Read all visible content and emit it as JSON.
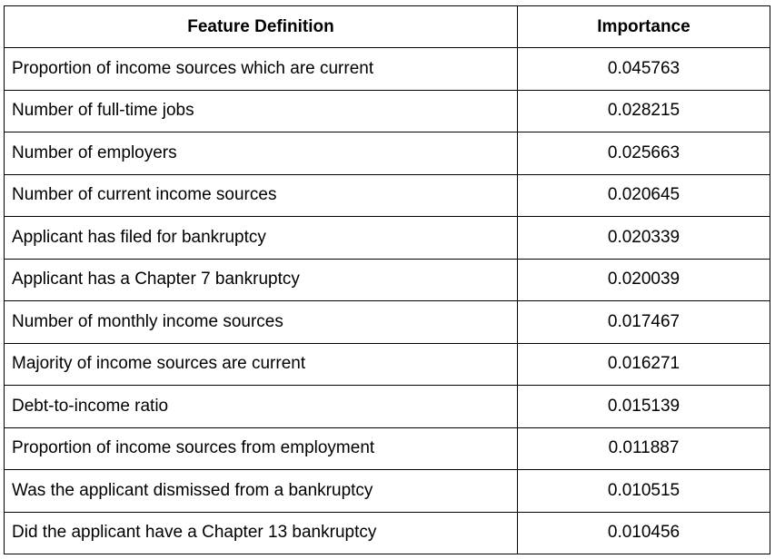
{
  "table": {
    "headers": [
      "Feature Definition",
      "Importance"
    ],
    "rows": [
      {
        "feature": "Proportion of income sources which are current",
        "importance": "0.045763"
      },
      {
        "feature": "Number of full-time jobs",
        "importance": "0.028215"
      },
      {
        "feature": "Number of employers",
        "importance": "0.025663"
      },
      {
        "feature": "Number of current income sources",
        "importance": "0.020645"
      },
      {
        "feature": "Applicant has filed for bankruptcy",
        "importance": "0.020339"
      },
      {
        "feature": "Applicant has a Chapter 7 bankruptcy",
        "importance": "0.020039"
      },
      {
        "feature": "Number of monthly income sources",
        "importance": "0.017467"
      },
      {
        "feature": "Majority of income sources are current",
        "importance": "0.016271"
      },
      {
        "feature": "Debt-to-income ratio",
        "importance": "0.015139"
      },
      {
        "feature": "Proportion of income sources from employment",
        "importance": "0.011887"
      },
      {
        "feature": "Was the applicant dismissed from a bankruptcy",
        "importance": "0.010515"
      },
      {
        "feature": "Did the applicant have a Chapter 13 bankruptcy",
        "importance": "0.010456"
      }
    ]
  }
}
